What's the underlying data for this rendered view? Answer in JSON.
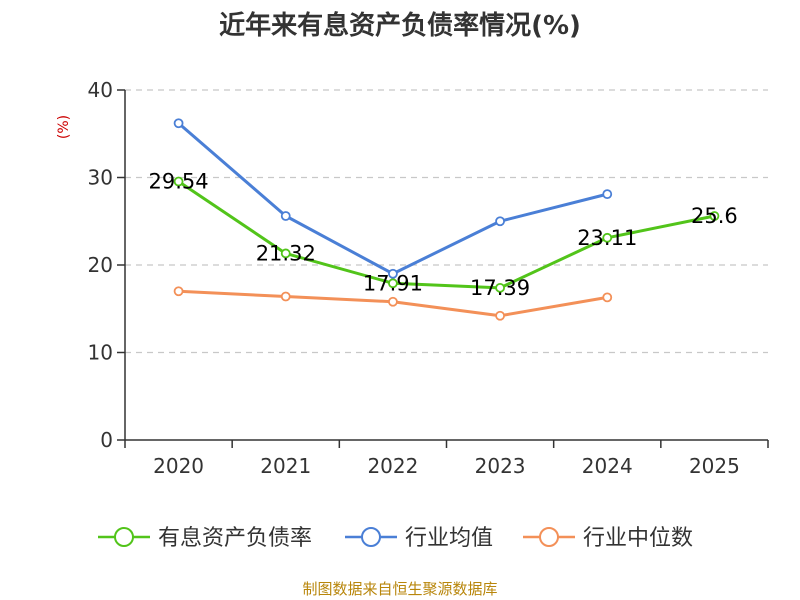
{
  "chart_data": {
    "type": "line",
    "title": "近年来有息资产负债率情况(%)",
    "y_unit_label": "(%)",
    "categories": [
      "2020",
      "2021",
      "2022",
      "2023",
      "2024",
      "2025"
    ],
    "y_ticks": [
      "0",
      "10",
      "20",
      "30",
      "40"
    ],
    "ylim": [
      0,
      40
    ],
    "grid": true,
    "legend_position": "bottom",
    "series": [
      {
        "name": "有息资产负债率",
        "color": "#52c41a",
        "values": [
          29.54,
          21.32,
          17.91,
          17.39,
          23.11,
          25.6
        ],
        "labels": [
          "29.54",
          "21.32",
          "17.91",
          "17.39",
          "23.11",
          "25.6"
        ]
      },
      {
        "name": "行业均值",
        "color": "#4a7fd6",
        "values": [
          36.2,
          25.6,
          19.0,
          25.0,
          28.1,
          null
        ]
      },
      {
        "name": "行业中位数",
        "color": "#f39058",
        "values": [
          17.0,
          16.4,
          15.8,
          14.2,
          16.3,
          null
        ]
      }
    ],
    "source": "制图数据来自恒生聚源数据库"
  }
}
